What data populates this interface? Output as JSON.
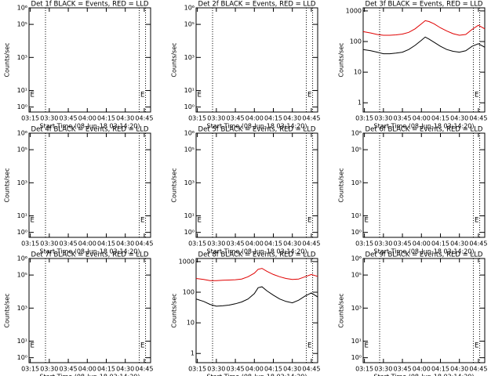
{
  "chart_data": [
    {
      "type": "line",
      "title": "Det 1f BLACK = Events, RED = LLD",
      "xlabel": "Start Time (08-Jun-18 03:14:20)",
      "ylabel": "Counts/sec",
      "log_y": true,
      "xlim": [
        "03:14",
        "04:50"
      ],
      "xticks": [
        "03:15",
        "03:30",
        "03:45",
        "04:00",
        "04:15",
        "04:30",
        "04:45"
      ],
      "ylim": [
        0.5,
        1000000
      ],
      "yticks": [
        {
          "value": 1,
          "label": "10⁰"
        },
        {
          "value": 10,
          "label": "10¹"
        },
        {
          "value": 1000,
          "label": "10³"
        },
        {
          "value": 100000,
          "label": "10⁵"
        },
        {
          "value": 1000000,
          "label": "10⁶"
        }
      ],
      "markers": [
        "03:27",
        "04:41",
        "04:46"
      ],
      "annotations": [
        {
          "text": "E",
          "x": "03:16"
        },
        {
          "text": "E",
          "x": "04:43"
        }
      ],
      "x": [],
      "series": []
    },
    {
      "type": "line",
      "title": "Det 2f BLACK = Events, RED = LLD",
      "xlabel": "Start Time (08-Jun-18 03:14:20)",
      "ylabel": "Counts/sec",
      "log_y": true,
      "xlim": [
        "03:14",
        "04:50"
      ],
      "xticks": [
        "03:15",
        "03:30",
        "03:45",
        "04:00",
        "04:15",
        "04:30",
        "04:45"
      ],
      "ylim": [
        0.5,
        1000000
      ],
      "yticks": [
        {
          "value": 1,
          "label": "10⁰"
        },
        {
          "value": 10,
          "label": "10¹"
        },
        {
          "value": 1000,
          "label": "10³"
        },
        {
          "value": 100000,
          "label": "10⁵"
        },
        {
          "value": 1000000,
          "label": "10⁶"
        }
      ],
      "markers": [
        "03:27",
        "04:41",
        "04:46"
      ],
      "annotations": [
        {
          "text": "E",
          "x": "03:16"
        },
        {
          "text": "E",
          "x": "04:43"
        }
      ],
      "x": [],
      "series": []
    },
    {
      "type": "line",
      "title": "Det 3f BLACK = Events, RED = LLD",
      "xlabel": "Start Time (08-Jun-18 03:14:20)",
      "ylabel": "Counts/sec",
      "log_y": true,
      "xlim": [
        "03:14",
        "04:50"
      ],
      "xticks": [
        "03:15",
        "03:30",
        "03:45",
        "04:00",
        "04:15",
        "04:30",
        "04:45"
      ],
      "ylim": [
        0.5,
        1260
      ],
      "yticks": [
        1,
        10,
        100,
        1000
      ],
      "markers": [
        "03:27",
        "04:41",
        "04:46"
      ],
      "annotations": [
        {
          "text": "E",
          "x": "04:43"
        }
      ],
      "x": [
        "03:14",
        "03:20",
        "03:25",
        "03:30",
        "03:35",
        "03:40",
        "03:45",
        "03:50",
        "03:55",
        "04:00",
        "04:03",
        "04:06",
        "04:10",
        "04:15",
        "04:20",
        "04:25",
        "04:30",
        "04:35",
        "04:40",
        "04:45",
        "04:50"
      ],
      "series": [
        {
          "color": "#e00000",
          "values": [
            210,
            190,
            170,
            160,
            160,
            165,
            175,
            200,
            260,
            380,
            480,
            450,
            380,
            280,
            220,
            180,
            160,
            170,
            250,
            340,
            260
          ]
        },
        {
          "color": "#000000",
          "values": [
            55,
            50,
            45,
            40,
            40,
            42,
            45,
            55,
            75,
            110,
            140,
            120,
            95,
            70,
            55,
            48,
            45,
            50,
            70,
            85,
            65
          ]
        }
      ]
    },
    {
      "type": "line",
      "title": "Det 4f BLACK = Events, RED = LLD",
      "xlabel": "Start Time (08-Jun-18 03:14:20)",
      "ylabel": "Counts/sec",
      "log_y": true,
      "xlim": [
        "03:14",
        "04:50"
      ],
      "xticks": [
        "03:15",
        "03:30",
        "03:45",
        "04:00",
        "04:15",
        "04:30",
        "04:45"
      ],
      "ylim": [
        0.5,
        1000000
      ],
      "yticks": [
        {
          "value": 1,
          "label": "10⁰"
        },
        {
          "value": 10,
          "label": "10¹"
        },
        {
          "value": 1000,
          "label": "10³"
        },
        {
          "value": 100000,
          "label": "10⁵"
        },
        {
          "value": 1000000,
          "label": "10⁶"
        }
      ],
      "markers": [
        "03:27",
        "04:41",
        "04:46"
      ],
      "annotations": [
        {
          "text": "E",
          "x": "03:16"
        },
        {
          "text": "E",
          "x": "04:43"
        }
      ],
      "x": [],
      "series": []
    },
    {
      "type": "line",
      "title": "Det 5f BLACK = Events, RED = LLD",
      "xlabel": "Start Time (08-Jun-18 03:14:20)",
      "ylabel": "Counts/sec",
      "log_y": true,
      "xlim": [
        "03:14",
        "04:50"
      ],
      "xticks": [
        "03:15",
        "03:30",
        "03:45",
        "04:00",
        "04:15",
        "04:30",
        "04:45"
      ],
      "ylim": [
        0.5,
        1000000
      ],
      "yticks": [
        {
          "value": 1,
          "label": "10⁰"
        },
        {
          "value": 10,
          "label": "10¹"
        },
        {
          "value": 1000,
          "label": "10³"
        },
        {
          "value": 100000,
          "label": "10⁵"
        },
        {
          "value": 1000000,
          "label": "10⁶"
        }
      ],
      "markers": [
        "03:27",
        "04:41",
        "04:46"
      ],
      "annotations": [
        {
          "text": "E",
          "x": "03:16"
        },
        {
          "text": "E",
          "x": "04:43"
        }
      ],
      "x": [],
      "series": []
    },
    {
      "type": "line",
      "title": "Det 6f BLACK = Events, RED = LLD",
      "xlabel": "Start Time (08-Jun-18 03:14:20)",
      "ylabel": "Counts/sec",
      "log_y": true,
      "xlim": [
        "03:14",
        "04:50"
      ],
      "xticks": [
        "03:15",
        "03:30",
        "03:45",
        "04:00",
        "04:15",
        "04:30",
        "04:45"
      ],
      "ylim": [
        0.5,
        1000000
      ],
      "yticks": [
        {
          "value": 1,
          "label": "10⁰"
        },
        {
          "value": 10,
          "label": "10¹"
        },
        {
          "value": 1000,
          "label": "10³"
        },
        {
          "value": 100000,
          "label": "10⁵"
        },
        {
          "value": 1000000,
          "label": "10⁶"
        }
      ],
      "markers": [
        "03:27",
        "04:41",
        "04:46"
      ],
      "annotations": [
        {
          "text": "E",
          "x": "03:16"
        },
        {
          "text": "E",
          "x": "04:43"
        }
      ],
      "x": [],
      "series": []
    },
    {
      "type": "line",
      "title": "Det 7f BLACK = Events, RED = LLD",
      "xlabel": "Start Time (08-Jun-18 03:14:20)",
      "ylabel": "Counts/sec",
      "log_y": true,
      "xlim": [
        "03:14",
        "04:50"
      ],
      "xticks": [
        "03:15",
        "03:30",
        "03:45",
        "04:00",
        "04:15",
        "04:30",
        "04:45"
      ],
      "ylim": [
        0.5,
        1000000
      ],
      "yticks": [
        {
          "value": 1,
          "label": "10⁰"
        },
        {
          "value": 10,
          "label": "10¹"
        },
        {
          "value": 1000,
          "label": "10³"
        },
        {
          "value": 100000,
          "label": "10⁵"
        },
        {
          "value": 1000000,
          "label": "10⁶"
        }
      ],
      "markers": [
        "03:27",
        "04:41",
        "04:46"
      ],
      "annotations": [
        {
          "text": "E",
          "x": "03:16"
        },
        {
          "text": "E",
          "x": "04:43"
        }
      ],
      "x": [],
      "series": []
    },
    {
      "type": "line",
      "title": "Det 8f BLACK = Events, RED = LLD",
      "xlabel": "Start Time (08-Jun-18 03:14:20)",
      "ylabel": "Counts/sec",
      "log_y": true,
      "xlim": [
        "03:14",
        "04:50"
      ],
      "xticks": [
        "03:15",
        "03:30",
        "03:45",
        "04:00",
        "04:15",
        "04:30",
        "04:45"
      ],
      "ylim": [
        0.5,
        1260
      ],
      "yticks": [
        1,
        10,
        100,
        1000
      ],
      "markers": [
        "03:27",
        "04:41",
        "04:46"
      ],
      "annotations": [
        {
          "text": "E",
          "x": "04:43"
        }
      ],
      "x": [
        "03:14",
        "03:20",
        "03:25",
        "03:30",
        "03:35",
        "03:40",
        "03:45",
        "03:50",
        "03:55",
        "04:00",
        "04:03",
        "04:06",
        "04:10",
        "04:15",
        "04:20",
        "04:25",
        "04:30",
        "04:35",
        "04:40",
        "04:45",
        "04:50"
      ],
      "series": [
        {
          "color": "#e00000",
          "values": [
            280,
            260,
            240,
            240,
            245,
            250,
            255,
            270,
            320,
            420,
            560,
            600,
            480,
            380,
            320,
            280,
            260,
            270,
            320,
            380,
            330
          ]
        },
        {
          "color": "#000000",
          "values": [
            60,
            50,
            40,
            35,
            36,
            38,
            42,
            48,
            60,
            90,
            140,
            150,
            110,
            80,
            60,
            50,
            45,
            55,
            75,
            95,
            70
          ]
        }
      ]
    },
    {
      "type": "line",
      "title": "Det 9f BLACK = Events, RED = LLD",
      "xlabel": "Start Time (08-Jun-18 03:14:20)",
      "ylabel": "Counts/sec",
      "log_y": true,
      "xlim": [
        "03:14",
        "04:50"
      ],
      "xticks": [
        "03:15",
        "03:30",
        "03:45",
        "04:00",
        "04:15",
        "04:30",
        "04:45"
      ],
      "ylim": [
        0.5,
        1000000
      ],
      "yticks": [
        {
          "value": 1,
          "label": "10⁰"
        },
        {
          "value": 10,
          "label": "10¹"
        },
        {
          "value": 1000,
          "label": "10³"
        },
        {
          "value": 100000,
          "label": "10⁵"
        },
        {
          "value": 1000000,
          "label": "10⁶"
        }
      ],
      "markers": [
        "03:27",
        "04:41",
        "04:46"
      ],
      "annotations": [
        {
          "text": "E",
          "x": "03:16"
        },
        {
          "text": "E",
          "x": "04:43"
        }
      ],
      "x": [],
      "series": []
    }
  ]
}
